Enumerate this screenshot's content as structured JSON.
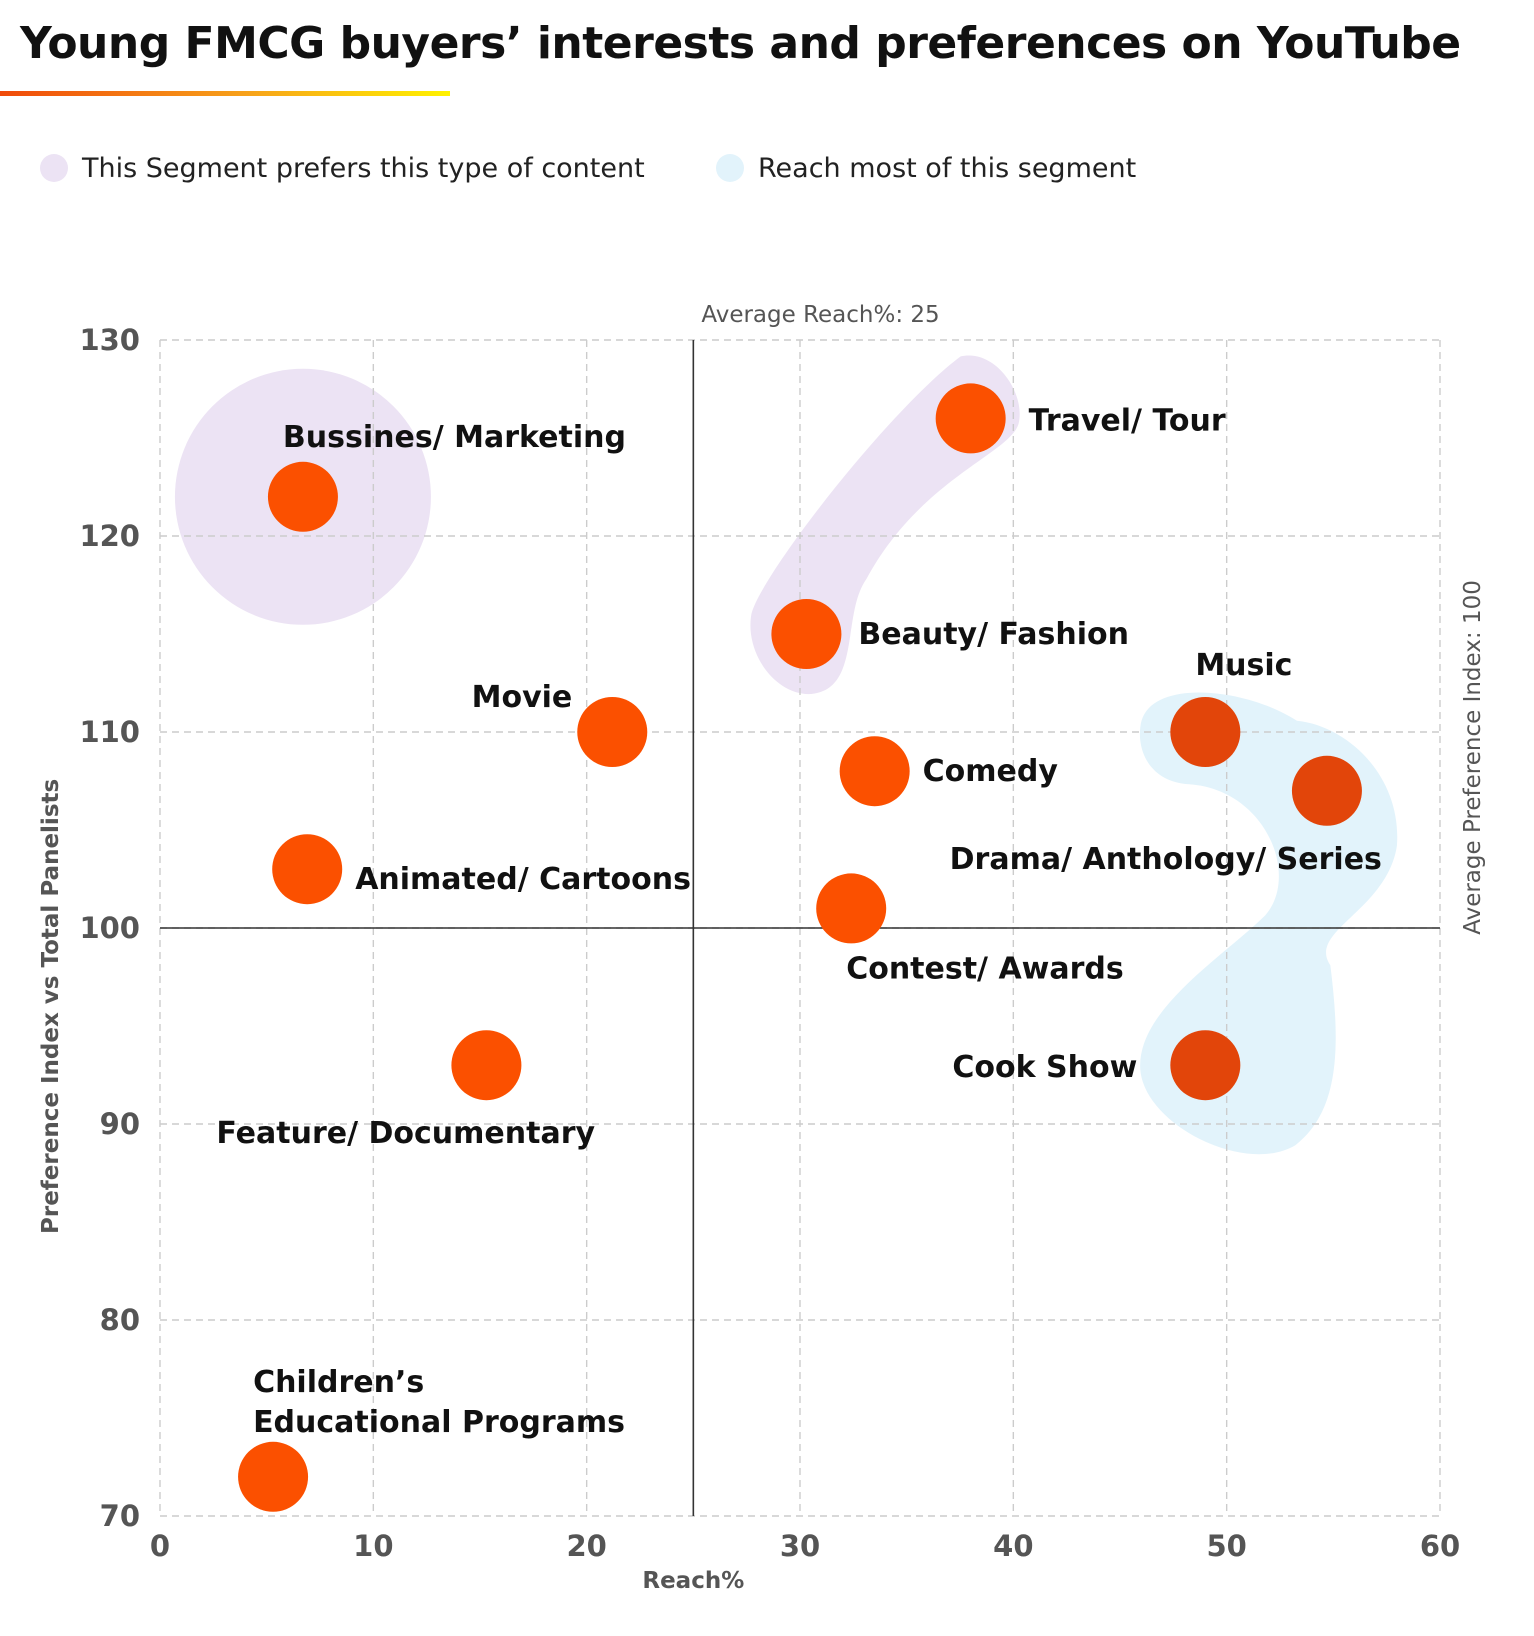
{
  "title": "Young FMCG buyers’ interests and preferences on YouTube",
  "legend": [
    {
      "label": "This Segment prefers this type of content",
      "color": "#ece3f4"
    },
    {
      "label": "Reach most of this segment",
      "color": "#e2f3fb"
    }
  ],
  "colors": {
    "point": "#fb5000",
    "point_dark": "#e2450a",
    "grid": "#cccccc",
    "axis_text": "#555555"
  },
  "chart_data": {
    "type": "scatter",
    "title": "Young FMCG buyers’ interests and preferences on YouTube",
    "xlabel": "Reach%",
    "ylabel": "Preference Index vs Total Panelists",
    "xlim": [
      0,
      60
    ],
    "ylim": [
      70,
      130
    ],
    "x_ticks": [
      0,
      10,
      20,
      30,
      40,
      50,
      60
    ],
    "y_ticks": [
      70,
      80,
      90,
      100,
      110,
      120,
      130
    ],
    "grid": true,
    "reference_lines": {
      "x": {
        "value": 25,
        "label": "Average Reach%: 25"
      },
      "y": {
        "value": 100,
        "label": "Average Preference Index: 100"
      }
    },
    "points": [
      {
        "label": "Bussines/ Marketing",
        "x": 6.7,
        "y": 122,
        "group": "prefers"
      },
      {
        "label": "Travel/ Tour",
        "x": 38,
        "y": 126,
        "group": "prefers"
      },
      {
        "label": "Beauty/ Fashion",
        "x": 30.3,
        "y": 115,
        "group": "prefers"
      },
      {
        "label": "Movie",
        "x": 21.2,
        "y": 110,
        "group": "none"
      },
      {
        "label": "Comedy",
        "x": 33.5,
        "y": 108,
        "group": "none"
      },
      {
        "label": "Music",
        "x": 49,
        "y": 110,
        "group": "reach"
      },
      {
        "label": "Drama/ Anthology/ Series",
        "x": 54.7,
        "y": 107,
        "group": "reach"
      },
      {
        "label": "Animated/ Cartoons",
        "x": 6.9,
        "y": 103,
        "group": "none"
      },
      {
        "label": "Contest/ Awards",
        "x": 32.4,
        "y": 101,
        "group": "none"
      },
      {
        "label": "Cook Show",
        "x": 49,
        "y": 93,
        "group": "reach"
      },
      {
        "label": "Feature/ Documentary",
        "x": 15.3,
        "y": 93,
        "group": "none"
      },
      {
        "label": "Children’s\nEducational Programs",
        "x": 5.3,
        "y": 72,
        "group": "none"
      }
    ]
  }
}
